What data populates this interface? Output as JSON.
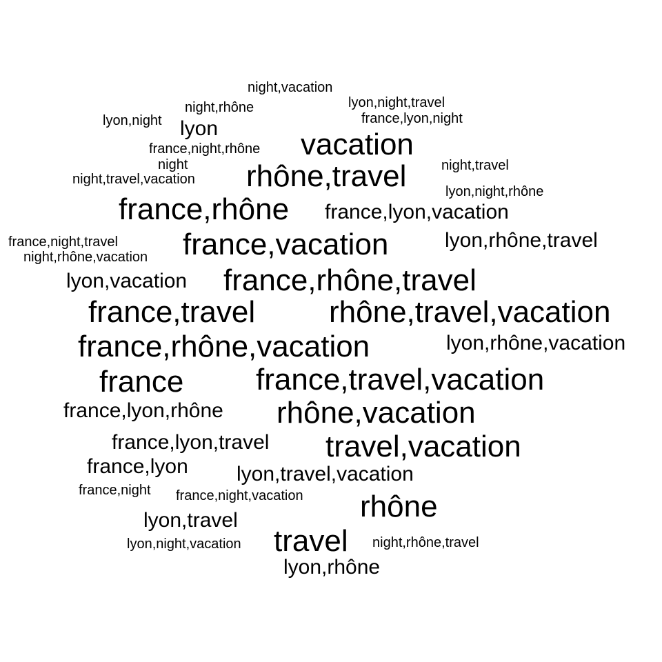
{
  "background_color": "#ffffff",
  "text_color": "#000000",
  "words": [
    "night,vacation",
    "lyon,night,travel",
    "night,rhône",
    "france,lyon,night",
    "lyon,night",
    "lyon",
    "vacation",
    "france,night,rhône",
    "night",
    "night,travel",
    "rhône,travel",
    "night,travel,vacation",
    "lyon,night,rhône",
    "france,rhône",
    "france,lyon,vacation",
    "france,night,travel",
    "france,vacation",
    "lyon,rhône,travel",
    "night,rhône,vacation",
    "lyon,vacation",
    "france,rhône,travel",
    "france,travel",
    "rhône,travel,vacation",
    "france,rhône,vacation",
    "lyon,rhône,vacation",
    "france",
    "france,travel,vacation",
    "france,lyon,rhône",
    "rhône,vacation",
    "france,lyon,travel",
    "travel,vacation",
    "france,lyon",
    "lyon,travel,vacation",
    "france,night",
    "france,night,vacation",
    "rhône",
    "lyon,travel",
    "travel",
    "lyon,night,vacation",
    "night,rhône,travel",
    "lyon,rhône"
  ]
}
